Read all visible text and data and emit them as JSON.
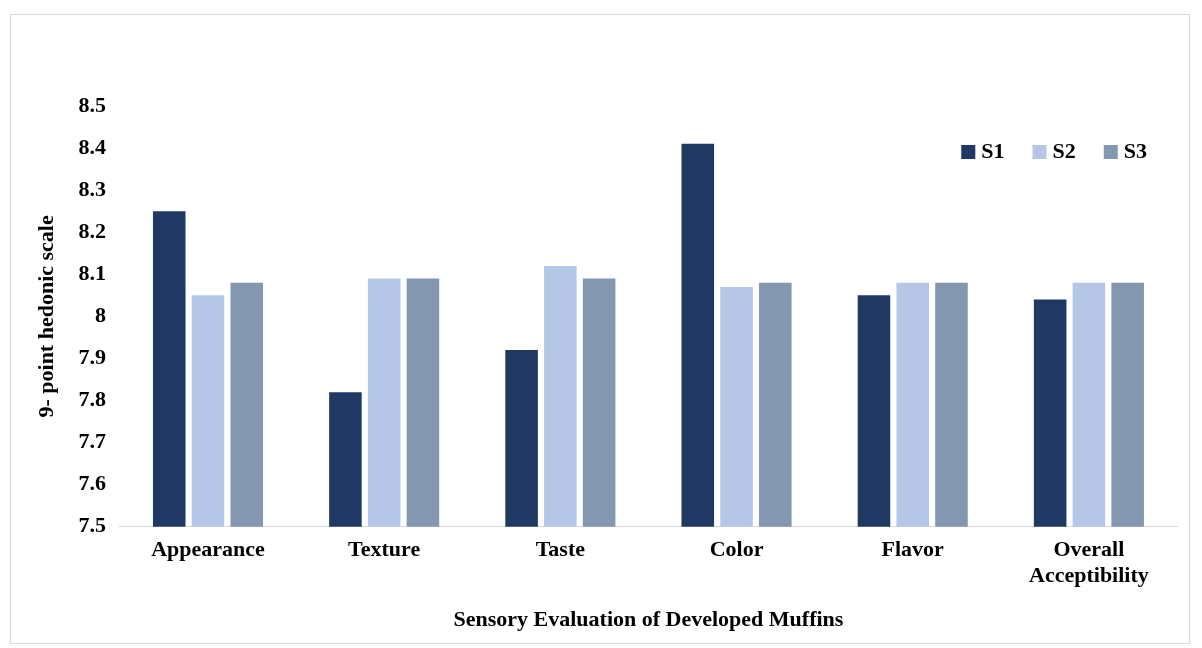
{
  "chart_data": {
    "type": "bar",
    "xlabel": "Sensory Evaluation of Developed Muffins",
    "ylabel": "9- point hedonic scale",
    "categories": [
      "Appearance",
      "Texture",
      "Taste",
      "Color",
      "Flavor",
      "Overall Acceptibility"
    ],
    "series": [
      {
        "name": "S1",
        "color": "#203864",
        "values": [
          8.25,
          7.82,
          7.92,
          8.41,
          8.05,
          8.04
        ]
      },
      {
        "name": "S2",
        "color": "#b4c7e7",
        "values": [
          8.05,
          8.09,
          8.12,
          8.07,
          8.08,
          8.08
        ]
      },
      {
        "name": "S3",
        "color": "#8497b0",
        "values": [
          8.08,
          8.09,
          8.09,
          8.08,
          8.08,
          8.08
        ]
      }
    ],
    "ylim": [
      7.5,
      8.5
    ],
    "yticks": [
      7.5,
      7.6,
      7.7,
      7.8,
      7.9,
      8,
      8.1,
      8.2,
      8.3,
      8.4,
      8.5
    ],
    "grid": false,
    "legend": "top right"
  }
}
